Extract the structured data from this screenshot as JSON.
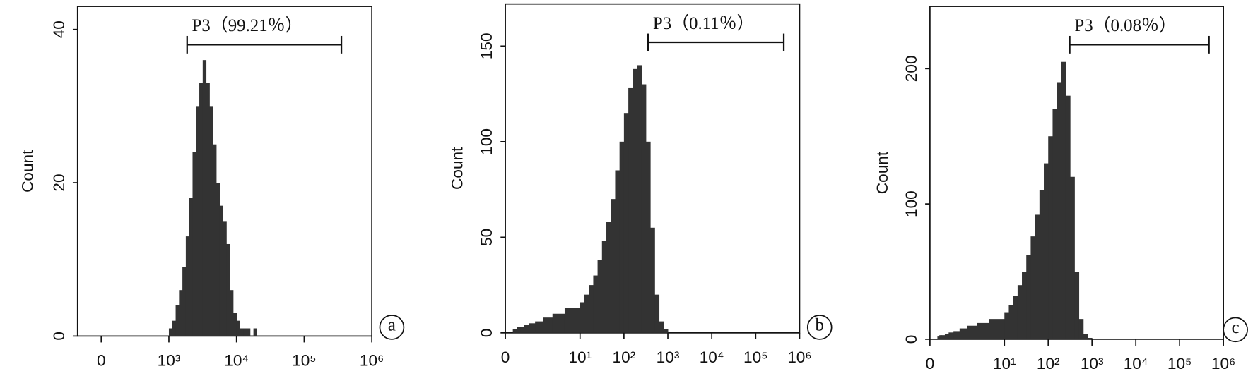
{
  "chart_data": [
    {
      "type": "histogram",
      "ylabel": "Count",
      "panel_label": "a",
      "xscale": "symlog",
      "linthresh": 1000,
      "linscale": 1,
      "xlim": [
        -350,
        1000000
      ],
      "xticks": [
        0,
        {
          "value": 1000,
          "label": "10³"
        },
        {
          "value": 10000,
          "label": "10⁴"
        },
        {
          "value": 100000,
          "label": "10⁵"
        },
        {
          "value": 1000000,
          "label": "10⁶"
        }
      ],
      "ylim": [
        0,
        43
      ],
      "yticks": [
        0,
        20,
        40
      ],
      "color": "#333333",
      "bins": [
        1000,
        1122,
        1259,
        1413,
        1585,
        1778,
        1995,
        2239,
        2512,
        2818,
        3162,
        3548,
        3981,
        4467,
        5012,
        5623,
        6310,
        7079,
        7943,
        8913,
        10000,
        11220,
        12589,
        14125,
        15849,
        17783,
        19953
      ],
      "values": [
        1,
        2,
        4,
        6,
        9,
        13,
        18,
        24,
        30,
        33,
        36,
        33,
        30,
        25,
        20,
        17,
        15,
        12,
        6,
        3,
        2,
        1,
        1,
        1,
        0,
        1
      ],
      "gate": {
        "label": "P3（99.21％）",
        "range": [
          1860,
          355000
        ]
      }
    },
    {
      "type": "histogram",
      "ylabel": "Count",
      "panel_label": "b",
      "xscale": "symlog",
      "linthresh": 10,
      "linscale": 1.7,
      "xlim": [
        0,
        1000000
      ],
      "xticks": [
        0,
        {
          "value": 10,
          "label": "10¹"
        },
        {
          "value": 100,
          "label": "10²"
        },
        {
          "value": 1000,
          "label": "10³"
        },
        {
          "value": 10000,
          "label": "10⁴"
        },
        {
          "value": 100000,
          "label": "10⁵"
        },
        {
          "value": 1000000,
          "label": "10⁶"
        }
      ],
      "ylim": [
        0,
        172
      ],
      "yticks": [
        0,
        50,
        100,
        150
      ],
      "color": "#333333",
      "bins": [
        1,
        1.26,
        1.58,
        2,
        2.51,
        3.16,
        3.98,
        5.01,
        6.31,
        7.94,
        10,
        12.6,
        15.8,
        20,
        25.1,
        31.6,
        39.8,
        50.1,
        63.1,
        79.4,
        100,
        126,
        158,
        200,
        251,
        316,
        398,
        501,
        631,
        794,
        1000
      ],
      "values": [
        2,
        2,
        3,
        3,
        4,
        5,
        6,
        8,
        10,
        13,
        16,
        20,
        25,
        30,
        38,
        48,
        58,
        70,
        85,
        100,
        115,
        128,
        138,
        140,
        130,
        100,
        55,
        20,
        6,
        2
      ],
      "gate": {
        "label": "P3（0.11％）",
        "range": [
          355,
          436000
        ]
      }
    },
    {
      "type": "histogram",
      "ylabel": "Count",
      "panel_label": "c",
      "xscale": "symlog",
      "linthresh": 10,
      "linscale": 1.7,
      "xlim": [
        0,
        1000000
      ],
      "xticks": [
        0,
        {
          "value": 10,
          "label": "10¹"
        },
        {
          "value": 100,
          "label": "10²"
        },
        {
          "value": 1000,
          "label": "10³"
        },
        {
          "value": 10000,
          "label": "10⁴"
        },
        {
          "value": 100000,
          "label": "10⁵"
        },
        {
          "value": 1000000,
          "label": "10⁶"
        }
      ],
      "ylim": [
        0,
        246
      ],
      "yticks": [
        0,
        100,
        200
      ],
      "color": "#333333",
      "bins": [
        1,
        1.26,
        1.58,
        2,
        2.51,
        3.16,
        3.98,
        5.01,
        6.31,
        7.94,
        10,
        12.6,
        15.8,
        20,
        25.1,
        31.6,
        39.8,
        50.1,
        63.1,
        79.4,
        100,
        126,
        158,
        200,
        251,
        316,
        398,
        501,
        631,
        794,
        1000
      ],
      "values": [
        2,
        3,
        3,
        4,
        5,
        6,
        8,
        10,
        12,
        15,
        20,
        25,
        32,
        40,
        50,
        62,
        76,
        92,
        110,
        130,
        150,
        170,
        190,
        205,
        180,
        120,
        50,
        15,
        4,
        1
      ],
      "gate": {
        "label": "P3（0.08％）",
        "range": [
          309,
          468000
        ]
      }
    }
  ]
}
